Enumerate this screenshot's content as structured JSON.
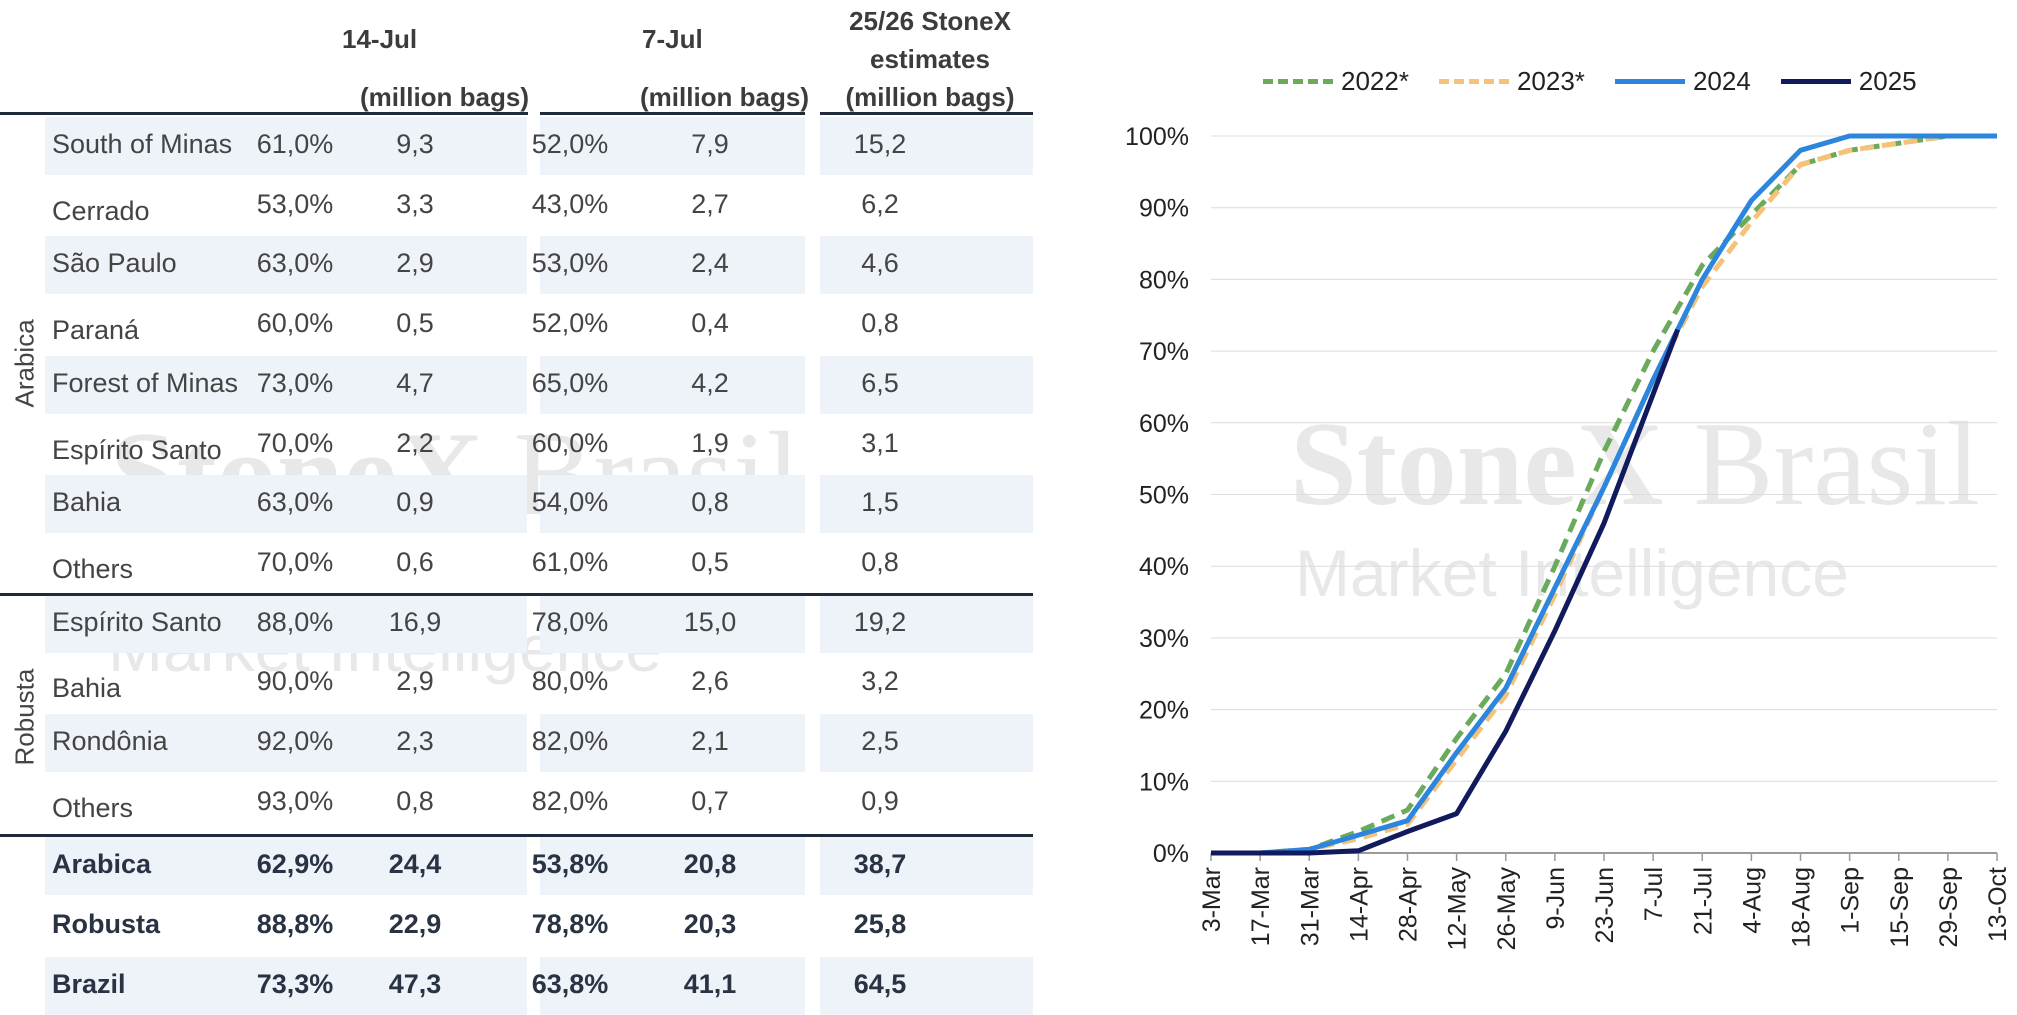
{
  "table": {
    "headers": {
      "col1_top": "14-Jul",
      "col1_sub": "(million bags)",
      "col2_top": "7-Jul",
      "col2_sub": "(million bags)",
      "col3_l1": "25/26 StoneX",
      "col3_l2": "estimates",
      "col3_sub": "(million bags)"
    },
    "groups": [
      "Arabica",
      "Robusta"
    ],
    "rows": [
      {
        "region": "South of Minas",
        "p1": "61,0%",
        "v1": "9,3",
        "p2": "52,0%",
        "v2": "7,9",
        "est": "15,2"
      },
      {
        "region": "Cerrado",
        "p1": "53,0%",
        "v1": "3,3",
        "p2": "43,0%",
        "v2": "2,7",
        "est": "6,2"
      },
      {
        "region": "São Paulo",
        "p1": "63,0%",
        "v1": "2,9",
        "p2": "53,0%",
        "v2": "2,4",
        "est": "4,6"
      },
      {
        "region": "Paraná",
        "p1": "60,0%",
        "v1": "0,5",
        "p2": "52,0%",
        "v2": "0,4",
        "est": "0,8"
      },
      {
        "region": "Forest of Minas",
        "p1": "73,0%",
        "v1": "4,7",
        "p2": "65,0%",
        "v2": "4,2",
        "est": "6,5"
      },
      {
        "region": "Espírito Santo",
        "p1": "70,0%",
        "v1": "2,2",
        "p2": "60,0%",
        "v2": "1,9",
        "est": "3,1"
      },
      {
        "region": "Bahia",
        "p1": "63,0%",
        "v1": "0,9",
        "p2": "54,0%",
        "v2": "0,8",
        "est": "1,5"
      },
      {
        "region": "Others",
        "p1": "70,0%",
        "v1": "0,6",
        "p2": "61,0%",
        "v2": "0,5",
        "est": "0,8"
      },
      {
        "region": "Espírito Santo",
        "p1": "88,0%",
        "v1": "16,9",
        "p2": "78,0%",
        "v2": "15,0",
        "est": "19,2"
      },
      {
        "region": "Bahia",
        "p1": "90,0%",
        "v1": "2,9",
        "p2": "80,0%",
        "v2": "2,6",
        "est": "3,2"
      },
      {
        "region": "Rondônia",
        "p1": "92,0%",
        "v1": "2,3",
        "p2": "82,0%",
        "v2": "2,1",
        "est": "2,5"
      },
      {
        "region": "Others",
        "p1": "93,0%",
        "v1": "0,8",
        "p2": "82,0%",
        "v2": "0,7",
        "est": "0,9"
      }
    ],
    "totals": [
      {
        "region": "Arabica",
        "p1": "62,9%",
        "v1": "24,4",
        "p2": "53,8%",
        "v2": "20,8",
        "est": "38,7"
      },
      {
        "region": "Robusta",
        "p1": "88,8%",
        "v1": "22,9",
        "p2": "78,8%",
        "v2": "20,3",
        "est": "25,8"
      },
      {
        "region": "Brazil",
        "p1": "73,3%",
        "v1": "47,3",
        "p2": "63,8%",
        "v2": "41,1",
        "est": "64,5"
      }
    ]
  },
  "watermark": {
    "brand_bold": "StoneX",
    "brand_light": "Brasil",
    "sub": "Market Intelligence"
  },
  "chart_data": {
    "type": "line",
    "x": [
      "3-Mar",
      "17-Mar",
      "31-Mar",
      "14-Apr",
      "28-Apr",
      "12-May",
      "26-May",
      "9-Jun",
      "23-Jun",
      "7-Jul",
      "21-Jul",
      "4-Aug",
      "18-Aug",
      "1-Sep",
      "15-Sep",
      "29-Sep",
      "13-Oct"
    ],
    "ylim": [
      0,
      100
    ],
    "yticks": [
      "0%",
      "10%",
      "20%",
      "30%",
      "40%",
      "50%",
      "60%",
      "70%",
      "80%",
      "90%",
      "100%"
    ],
    "legend_position": "top",
    "grid": true,
    "series": [
      {
        "name": "2022*",
        "color": "#6aaa5a",
        "dashed": true,
        "x": [
          "3-Mar",
          "17-Mar",
          "31-Mar",
          "14-Apr",
          "28-Apr",
          "12-May",
          "26-May",
          "9-Jun",
          "23-Jun",
          "7-Jul",
          "21-Jul",
          "4-Aug",
          "18-Aug",
          "1-Sep",
          "15-Sep",
          "29-Sep",
          "13-Oct"
        ],
        "values": [
          0,
          0,
          0.5,
          3,
          6,
          16,
          25,
          40,
          56,
          70,
          82,
          89,
          96,
          98,
          99,
          100,
          100
        ]
      },
      {
        "name": "2023*",
        "color": "#f5c27a",
        "dashed": true,
        "x": [
          "3-Mar",
          "17-Mar",
          "31-Mar",
          "14-Apr",
          "28-Apr",
          "12-May",
          "26-May",
          "9-Jun",
          "23-Jun",
          "7-Jul",
          "21-Jul",
          "4-Aug",
          "18-Aug",
          "1-Sep",
          "15-Sep",
          "29-Sep",
          "13-Oct"
        ],
        "values": [
          0,
          0,
          0.5,
          2,
          4,
          13,
          22,
          36,
          51,
          66,
          79,
          88,
          96,
          98,
          99,
          100,
          100
        ]
      },
      {
        "name": "2024",
        "color": "#2c86de",
        "dashed": false,
        "x": [
          "3-Mar",
          "17-Mar",
          "31-Mar",
          "14-Apr",
          "28-Apr",
          "12-May",
          "26-May",
          "9-Jun",
          "23-Jun",
          "7-Jul",
          "21-Jul",
          "4-Aug",
          "18-Aug",
          "1-Sep",
          "15-Sep",
          "29-Sep",
          "13-Oct"
        ],
        "values": [
          0,
          0,
          0.5,
          2.5,
          4.5,
          14,
          23,
          37,
          51,
          66,
          80,
          91,
          98,
          100,
          100,
          100,
          100
        ]
      },
      {
        "name": "2025",
        "color": "#111a5c",
        "dashed": false,
        "x": [
          "3-Mar",
          "17-Mar",
          "31-Mar",
          "14-Apr",
          "28-Apr",
          "12-May",
          "26-May",
          "9-Jun",
          "23-Jun",
          "7-Jul",
          "14-Jul"
        ],
        "values": [
          0,
          0,
          0,
          0.3,
          3,
          5.5,
          17,
          31,
          46,
          64,
          73
        ]
      }
    ]
  }
}
